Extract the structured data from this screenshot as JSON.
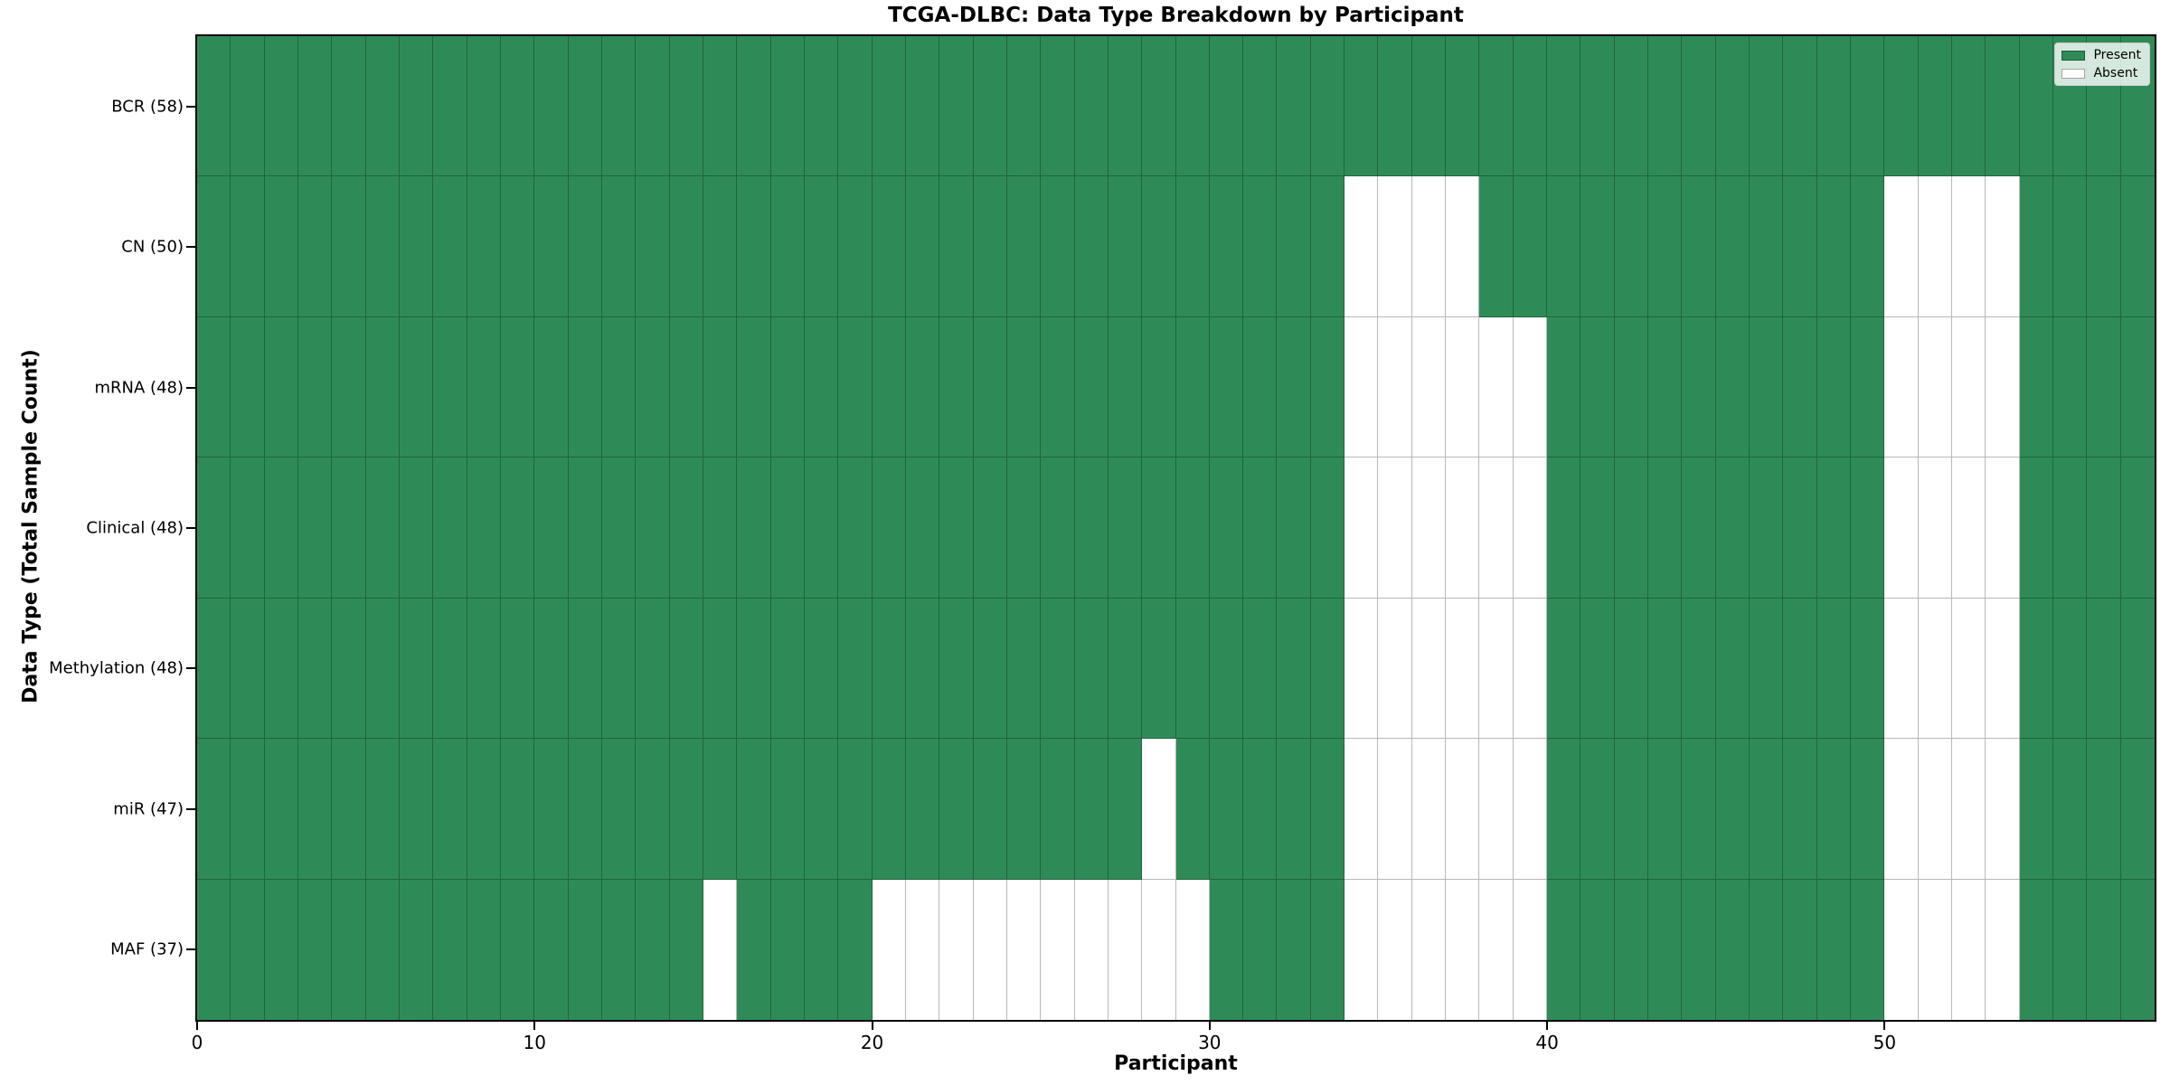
{
  "chart_data": {
    "type": "heatmap",
    "title": "TCGA-DLBC: Data Type Breakdown by Participant",
    "xlabel": "Participant",
    "ylabel": "Data Type (Total Sample Count)",
    "x_ticks": [
      0,
      10,
      20,
      30,
      40,
      50
    ],
    "n_participants": 58,
    "legend": [
      {
        "label": "Present",
        "color": "#2E8B57"
      },
      {
        "label": "Absent",
        "color": "#FFFFFF"
      }
    ],
    "colors": {
      "present": "#2E8B57",
      "absent": "#FFFFFF",
      "grid_line": "rgba(0,0,0,0.28)",
      "axis": "#000000"
    },
    "rows": [
      {
        "label": "BCR (58)",
        "data_type": "BCR",
        "total_samples": 58,
        "absent_participants": []
      },
      {
        "label": "CN (50)",
        "data_type": "CN",
        "total_samples": 50,
        "absent_participants": [
          34,
          35,
          36,
          37,
          50,
          51,
          52,
          53
        ]
      },
      {
        "label": "mRNA (48)",
        "data_type": "mRNA",
        "total_samples": 48,
        "absent_participants": [
          34,
          35,
          36,
          37,
          38,
          39,
          50,
          51,
          52,
          53
        ]
      },
      {
        "label": "Clinical (48)",
        "data_type": "Clinical",
        "total_samples": 48,
        "absent_participants": [
          34,
          35,
          36,
          37,
          38,
          39,
          50,
          51,
          52,
          53
        ]
      },
      {
        "label": "Methylation (48)",
        "data_type": "Methylation",
        "total_samples": 48,
        "absent_participants": [
          34,
          35,
          36,
          37,
          38,
          39,
          50,
          51,
          52,
          53
        ]
      },
      {
        "label": "miR (47)",
        "data_type": "miR",
        "total_samples": 47,
        "absent_participants": [
          28,
          34,
          35,
          36,
          37,
          38,
          39,
          50,
          51,
          52,
          53
        ]
      },
      {
        "label": "MAF (37)",
        "data_type": "MAF",
        "total_samples": 37,
        "absent_participants": [
          15,
          20,
          21,
          22,
          23,
          24,
          25,
          26,
          27,
          28,
          29,
          34,
          35,
          36,
          37,
          38,
          39,
          50,
          51,
          52,
          53
        ]
      }
    ]
  }
}
